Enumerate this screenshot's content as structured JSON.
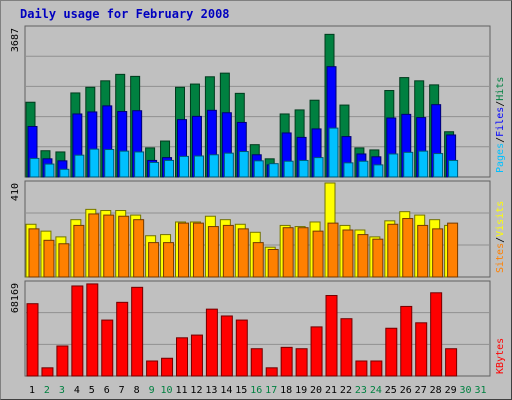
{
  "chart_title": "Daily usage for February 2008",
  "colors": {
    "background": "#c0c0c0",
    "grid": "#909090",
    "hits": "#008040",
    "files": "#0000ff",
    "pages": "#00c0ff",
    "visits": "#ffff00",
    "sites": "#ff8000",
    "kbytes": "#ff0000",
    "weekday_label": "#000000",
    "weekend_label": "#008040"
  },
  "chart_data": [
    {
      "type": "bar",
      "panel": "hits-files-pages",
      "ylim": [
        0,
        3687
      ],
      "y_max_label": "3687",
      "right_legend": [
        {
          "text": "Pages",
          "color": "#00c0ff"
        },
        {
          "text": "/",
          "color": "#000000"
        },
        {
          "text": "Files",
          "color": "#0000ff"
        },
        {
          "text": "/",
          "color": "#000000"
        },
        {
          "text": "Hits",
          "color": "#008040"
        }
      ],
      "categories": [
        "1",
        "2",
        "3",
        "4",
        "5",
        "6",
        "7",
        "8",
        "9",
        "10",
        "11",
        "12",
        "13",
        "14",
        "15",
        "16",
        "17",
        "18",
        "19",
        "20",
        "21",
        "22",
        "23",
        "24",
        "25",
        "26",
        "27",
        "28",
        "29",
        "30",
        "31"
      ],
      "series": [
        {
          "name": "Hits",
          "values": [
            1850,
            650,
            620,
            2080,
            2220,
            2380,
            2540,
            2490,
            720,
            890,
            2220,
            2300,
            2480,
            2570,
            2070,
            800,
            450,
            1560,
            1660,
            1900,
            3530,
            1780,
            720,
            670,
            2140,
            2460,
            2380,
            2280,
            1120,
            null,
            null
          ]
        },
        {
          "name": "Files",
          "values": [
            1250,
            450,
            400,
            1560,
            1610,
            1760,
            1620,
            1640,
            410,
            480,
            1420,
            1500,
            1650,
            1590,
            1350,
            550,
            300,
            1090,
            980,
            1190,
            2730,
            1000,
            570,
            500,
            1460,
            1550,
            1470,
            1790,
            1040,
            null,
            null
          ]
        },
        {
          "name": "Pages",
          "values": [
            460,
            320,
            190,
            540,
            690,
            680,
            640,
            620,
            360,
            410,
            510,
            520,
            550,
            590,
            630,
            400,
            330,
            390,
            410,
            480,
            1210,
            350,
            390,
            300,
            570,
            610,
            640,
            580,
            410,
            null,
            null
          ]
        }
      ]
    },
    {
      "type": "bar",
      "panel": "sites-visits",
      "ylim": [
        0,
        410
      ],
      "y_max_label": "410",
      "right_legend": [
        {
          "text": "Sites",
          "color": "#ff8000"
        },
        {
          "text": "/",
          "color": "#000000"
        },
        {
          "text": "Visits",
          "color": "#ffff00"
        }
      ],
      "categories": [
        "1",
        "2",
        "3",
        "4",
        "5",
        "6",
        "7",
        "8",
        "9",
        "10",
        "11",
        "12",
        "13",
        "14",
        "15",
        "16",
        "17",
        "18",
        "19",
        "20",
        "21",
        "22",
        "23",
        "24",
        "25",
        "26",
        "27",
        "28",
        "29",
        "30",
        "31"
      ],
      "series": [
        {
          "name": "Visits",
          "values": [
            230,
            200,
            175,
            250,
            295,
            290,
            290,
            270,
            180,
            185,
            240,
            240,
            265,
            250,
            230,
            195,
            130,
            225,
            220,
            240,
            410,
            225,
            205,
            175,
            245,
            285,
            270,
            250,
            225,
            null,
            null
          ]
        },
        {
          "name": "Sites",
          "values": [
            210,
            160,
            145,
            225,
            275,
            270,
            265,
            250,
            150,
            150,
            235,
            235,
            220,
            225,
            210,
            150,
            120,
            215,
            215,
            200,
            235,
            205,
            185,
            165,
            230,
            255,
            225,
            210,
            235,
            null,
            null
          ]
        }
      ]
    },
    {
      "type": "bar",
      "panel": "kbytes",
      "ylim": [
        0,
        68169
      ],
      "y_max_label": "68169",
      "right_legend": [
        {
          "text": "KBytes",
          "color": "#ff0000"
        }
      ],
      "categories": [
        "1",
        "2",
        "3",
        "4",
        "5",
        "6",
        "7",
        "8",
        "9",
        "10",
        "11",
        "12",
        "13",
        "14",
        "15",
        "16",
        "17",
        "18",
        "19",
        "20",
        "21",
        "22",
        "23",
        "24",
        "25",
        "26",
        "27",
        "28",
        "29",
        "30",
        "31"
      ],
      "series": [
        {
          "name": "KBytes",
          "values": [
            53000,
            6000,
            22000,
            66000,
            67500,
            41000,
            54000,
            65000,
            11000,
            13000,
            28000,
            30000,
            49000,
            44000,
            41000,
            20000,
            6000,
            21000,
            20000,
            36000,
            59000,
            42000,
            11000,
            11000,
            35000,
            51000,
            39000,
            61000,
            20000,
            null,
            null
          ]
        }
      ]
    }
  ],
  "x_axis": {
    "labels": [
      {
        "text": "1",
        "weekend": false
      },
      {
        "text": "2",
        "weekend": true
      },
      {
        "text": "3",
        "weekend": true
      },
      {
        "text": "4",
        "weekend": false
      },
      {
        "text": "5",
        "weekend": false
      },
      {
        "text": "6",
        "weekend": false
      },
      {
        "text": "7",
        "weekend": false
      },
      {
        "text": "8",
        "weekend": false
      },
      {
        "text": "9",
        "weekend": true
      },
      {
        "text": "10",
        "weekend": true
      },
      {
        "text": "11",
        "weekend": false
      },
      {
        "text": "12",
        "weekend": false
      },
      {
        "text": "13",
        "weekend": false
      },
      {
        "text": "14",
        "weekend": false
      },
      {
        "text": "15",
        "weekend": false
      },
      {
        "text": "16",
        "weekend": true
      },
      {
        "text": "17",
        "weekend": true
      },
      {
        "text": "18",
        "weekend": false
      },
      {
        "text": "19",
        "weekend": false
      },
      {
        "text": "20",
        "weekend": false
      },
      {
        "text": "21",
        "weekend": false
      },
      {
        "text": "22",
        "weekend": false
      },
      {
        "text": "23",
        "weekend": true
      },
      {
        "text": "24",
        "weekend": true
      },
      {
        "text": "25",
        "weekend": false
      },
      {
        "text": "26",
        "weekend": false
      },
      {
        "text": "27",
        "weekend": false
      },
      {
        "text": "28",
        "weekend": false
      },
      {
        "text": "29",
        "weekend": false
      },
      {
        "text": "30",
        "weekend": true
      },
      {
        "text": "31",
        "weekend": true
      }
    ]
  }
}
